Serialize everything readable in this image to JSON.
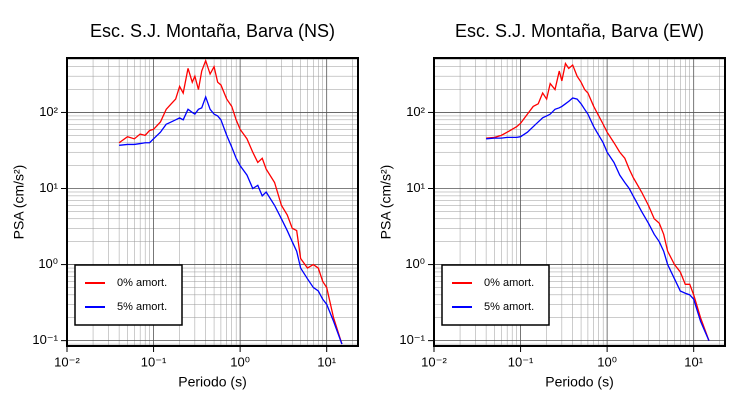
{
  "chart_data": [
    {
      "type": "line",
      "title": "Esc. S.J. Montaña, Barva (NS)",
      "xlabel": "Periodo (s)",
      "ylabel": "PSA (cm/s²)",
      "xscale": "log",
      "yscale": "log",
      "grid": true,
      "legend": "lower left",
      "xlim": [
        0.01,
        23
      ],
      "ylim": [
        0.085,
        520
      ],
      "xticks": [
        {
          "value": 0.01,
          "label": "10⁻²"
        },
        {
          "value": 0.1,
          "label": "10⁻¹"
        },
        {
          "value": 1,
          "label": "10⁰"
        },
        {
          "value": 10,
          "label": "10¹"
        }
      ],
      "yticks": [
        {
          "value": 0.1,
          "label": "10⁻¹"
        },
        {
          "value": 1,
          "label": "10⁰"
        },
        {
          "value": 10,
          "label": "10¹"
        },
        {
          "value": 100,
          "label": "10²"
        }
      ],
      "x": [
        0.04,
        0.05,
        0.06,
        0.07,
        0.08,
        0.09,
        0.1,
        0.12,
        0.14,
        0.16,
        0.18,
        0.2,
        0.22,
        0.25,
        0.28,
        0.3,
        0.33,
        0.36,
        0.4,
        0.45,
        0.5,
        0.55,
        0.6,
        0.7,
        0.8,
        0.9,
        1.0,
        1.2,
        1.4,
        1.6,
        1.8,
        2.0,
        2.5,
        3.0,
        3.5,
        4.0,
        4.5,
        5.0,
        6.0,
        7.0,
        8.0,
        9.0,
        10,
        12,
        15
      ],
      "series": [
        {
          "name": "0% amort.",
          "color": "#ff0000",
          "values": [
            40,
            48,
            45,
            52,
            50,
            58,
            60,
            75,
            110,
            130,
            150,
            220,
            180,
            380,
            250,
            300,
            200,
            350,
            480,
            320,
            400,
            250,
            230,
            150,
            120,
            80,
            60,
            45,
            30,
            22,
            25,
            18,
            12,
            6,
            4.5,
            3,
            2.8,
            1.2,
            0.9,
            1.0,
            0.9,
            0.6,
            0.5,
            0.2,
            0.09
          ]
        },
        {
          "name": "5% amort.",
          "color": "#0000ff",
          "values": [
            37,
            38,
            38,
            39,
            40,
            40,
            45,
            55,
            70,
            75,
            80,
            85,
            80,
            110,
            100,
            95,
            110,
            115,
            160,
            110,
            95,
            90,
            80,
            50,
            35,
            25,
            20,
            15,
            10,
            11,
            8,
            9,
            6,
            4,
            2.8,
            2,
            1.5,
            0.9,
            0.65,
            0.5,
            0.45,
            0.35,
            0.3,
            0.18,
            0.09
          ]
        }
      ]
    },
    {
      "type": "line",
      "title": "Esc. S.J. Montaña, Barva (EW)",
      "xlabel": "Periodo (s)",
      "ylabel": "PSA (cm/s²)",
      "xscale": "log",
      "yscale": "log",
      "grid": true,
      "legend": "lower left",
      "xlim": [
        0.01,
        23
      ],
      "ylim": [
        0.085,
        520
      ],
      "xticks": [
        {
          "value": 0.01,
          "label": "10⁻²"
        },
        {
          "value": 0.1,
          "label": "10⁻¹"
        },
        {
          "value": 1,
          "label": "10⁰"
        },
        {
          "value": 10,
          "label": "10¹"
        }
      ],
      "yticks": [
        {
          "value": 0.1,
          "label": "10⁻¹"
        },
        {
          "value": 1,
          "label": "10⁰"
        },
        {
          "value": 10,
          "label": "10¹"
        },
        {
          "value": 100,
          "label": "10²"
        }
      ],
      "x": [
        0.04,
        0.05,
        0.06,
        0.07,
        0.08,
        0.09,
        0.1,
        0.12,
        0.14,
        0.16,
        0.18,
        0.2,
        0.22,
        0.25,
        0.28,
        0.3,
        0.33,
        0.36,
        0.4,
        0.45,
        0.5,
        0.55,
        0.6,
        0.7,
        0.8,
        0.9,
        1.0,
        1.2,
        1.4,
        1.6,
        1.8,
        2.0,
        2.5,
        3.0,
        3.5,
        4.0,
        4.5,
        5.0,
        6.0,
        7.0,
        8.0,
        9.0,
        10,
        12,
        15
      ],
      "series": [
        {
          "name": "0% amort.",
          "color": "#ff0000",
          "values": [
            46,
            47,
            50,
            55,
            60,
            65,
            72,
            95,
            120,
            130,
            180,
            150,
            240,
            200,
            350,
            260,
            440,
            380,
            420,
            300,
            250,
            200,
            180,
            120,
            90,
            70,
            55,
            40,
            30,
            25,
            18,
            14,
            9,
            6,
            4,
            3.5,
            2.5,
            1.5,
            1.0,
            0.8,
            0.55,
            0.55,
            0.4,
            0.2,
            0.1
          ]
        },
        {
          "name": "5% amort.",
          "color": "#0000ff",
          "values": [
            45,
            46,
            46,
            47,
            47,
            47,
            48,
            55,
            65,
            75,
            85,
            90,
            95,
            110,
            115,
            120,
            130,
            140,
            155,
            150,
            130,
            110,
            95,
            65,
            50,
            40,
            30,
            22,
            15,
            12,
            10,
            8,
            5,
            3.5,
            2.5,
            2,
            1.5,
            1.0,
            0.65,
            0.45,
            0.42,
            0.4,
            0.35,
            0.18,
            0.1
          ]
        }
      ]
    }
  ]
}
